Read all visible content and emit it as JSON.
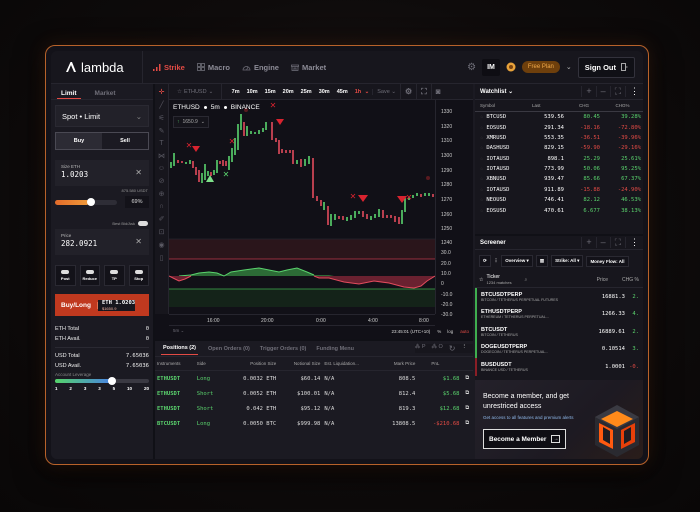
{
  "app": {
    "logo": "lambda"
  },
  "nav": [
    {
      "label": "Strike",
      "icon": "bar-chart-icon",
      "active": true
    },
    {
      "label": "Macro",
      "icon": "grid-icon",
      "active": false
    },
    {
      "label": "Engine",
      "icon": "gauge-icon",
      "active": false
    },
    {
      "label": "Market",
      "icon": "store-icon",
      "active": false
    }
  ],
  "header": {
    "user_initials": "IM",
    "plan": "Free Plan",
    "sign_out": "Sign Out"
  },
  "order_panel": {
    "tabs": [
      "Limit",
      "Market"
    ],
    "order_type": "Spot • Limit",
    "buy_label": "Buy",
    "sell_label": "Sell",
    "size_label": "Size ETH",
    "size_value": "1.0203",
    "available": "875.580 USDT",
    "size_pct": "69%",
    "best_bid_ask": "Best Bid/Ask",
    "price_label": "Price",
    "price_value": "282.0921",
    "options": [
      "Post",
      "Reduce",
      "TP",
      "Stop"
    ],
    "submit_label": "Buy/Long",
    "submit_amount": "ETH 1.0203",
    "submit_sub": "$1650.9",
    "balances": [
      {
        "label": "ETH Total",
        "value": "0"
      },
      {
        "label": "ETH Avail.",
        "value": "0"
      },
      {
        "label": "USD Total",
        "value": "7.65036"
      },
      {
        "label": "USD Avail.",
        "value": "7.65036"
      }
    ],
    "leverage_label": "Account Leverage",
    "leverage_ticks": [
      "1",
      "2",
      "3",
      "3",
      "5",
      "10",
      "20"
    ]
  },
  "chart": {
    "symbol_selector": "ETHUSD",
    "timeframes": [
      "7m",
      "10m",
      "15m",
      "20m",
      "25m",
      "30m",
      "45m",
      "1h"
    ],
    "active_timeframe": "1h",
    "save_label": "Save",
    "legend_symbol": "ETHUSD",
    "legend_interval": "5m",
    "legend_exchange": "BINANCE",
    "legend_price": "1650.9",
    "y_labels": [
      "1330",
      "1320",
      "1310",
      "1300",
      "1290",
      "1280",
      "1270",
      "1260",
      "1250",
      "1240"
    ],
    "osc_labels": [
      "30.0",
      "20.0",
      "10.0",
      "0",
      "-10.0",
      "-20.0",
      "-30.0"
    ],
    "x_labels": [
      "16:00",
      "20:00",
      "0:00",
      "4:00",
      "8:00"
    ],
    "interval_footer": "5m",
    "clock": "23:45:01 (UTC+10)",
    "footer_buttons": [
      "%",
      "log",
      "auto"
    ]
  },
  "positions": {
    "tabs": [
      "Positions (2)",
      "Open Orders (0)",
      "Trigger Orders (0)",
      "Funding Menu"
    ],
    "right_buttons": [
      "P",
      "O"
    ],
    "columns": [
      "Instruments",
      "Side",
      "Position Size",
      "Notional Size",
      "Est. Liquidation...",
      "Mark Price",
      "PnL"
    ],
    "rows": [
      {
        "instrument": "ETHUSDT",
        "side": "Long",
        "size": "0.0032 ETH",
        "notional": "$60.14",
        "liq": "N/A",
        "mark": "808.5",
        "pnl": "$1.68",
        "pnl_neg": false
      },
      {
        "instrument": "ETHUSDT",
        "side": "Short",
        "size": "0.0052 ETH",
        "notional": "$100.01",
        "liq": "N/A",
        "mark": "812.4",
        "pnl": "$5.68",
        "pnl_neg": false
      },
      {
        "instrument": "ETHUSDT",
        "side": "Short",
        "size": "0.042 ETH",
        "notional": "$95.12",
        "liq": "N/A",
        "mark": "819.3",
        "pnl": "$12.68",
        "pnl_neg": false
      },
      {
        "instrument": "BTCUSDT",
        "side": "Long",
        "size": "0.0050 BTC",
        "notional": "$999.98",
        "liq": "N/A",
        "mark": "13808.5",
        "pnl": "-$210.68",
        "pnl_neg": true
      }
    ]
  },
  "watchlist": {
    "title": "Watchlist",
    "columns": [
      "Symbol",
      "Last",
      "CHG",
      "CHG%"
    ],
    "rows": [
      {
        "symbol": "BTCUSD",
        "last": "539.56",
        "chg": "80.45",
        "pct": "39.28%",
        "up": true
      },
      {
        "symbol": "EOSUSD",
        "last": "291.34",
        "chg": "-18.16",
        "pct": "-72.80%",
        "up": false
      },
      {
        "symbol": "XMRUSD",
        "last": "553.35",
        "chg": "-36.51",
        "pct": "-39.96%",
        "up": false
      },
      {
        "symbol": "DASHUSD",
        "last": "829.15",
        "chg": "-59.90",
        "pct": "-29.16%",
        "up": false
      },
      {
        "symbol": "IOTAUSD",
        "last": "898.1",
        "chg": "25.29",
        "pct": "25.61%",
        "up": true
      },
      {
        "symbol": "IOTAUSD",
        "last": "773.99",
        "chg": "50.06",
        "pct": "95.25%",
        "up": true
      },
      {
        "symbol": "XBNUSD",
        "last": "939.47",
        "chg": "85.66",
        "pct": "67.37%",
        "up": true
      },
      {
        "symbol": "IOTAUSD",
        "last": "911.89",
        "chg": "-15.88",
        "pct": "-24.90%",
        "up": false
      },
      {
        "symbol": "NEOUSD",
        "last": "746.41",
        "chg": "82.12",
        "pct": "46.53%",
        "up": true
      },
      {
        "symbol": "EOSUSD",
        "last": "470.61",
        "chg": "6.677",
        "pct": "38.13%",
        "up": true
      }
    ]
  },
  "screener": {
    "title": "Screener",
    "filters": [
      "Overview",
      "Strike: All",
      "Money Flow: All"
    ],
    "ticker_label": "Ticker",
    "matches": "1234 matches",
    "price_col": "Price",
    "chg_col": "CHG %",
    "rows": [
      {
        "ticker": "BTCUSDTPERP",
        "desc": "BITCOIN / TETHERUS PERPETUAL FUTURES",
        "price": "16881.3",
        "chg": "2.",
        "up": true
      },
      {
        "ticker": "ETHUSDTPERP",
        "desc": "ETHEREUM / TETHERUS PERPETUAL...",
        "price": "1266.33",
        "chg": "4.",
        "up": true
      },
      {
        "ticker": "BTCUSDT",
        "desc": "BITCOIN / TETHERUS",
        "price": "16889.61",
        "chg": "2.",
        "up": true
      },
      {
        "ticker": "DOGEUSDTPERP",
        "desc": "DOGECOIN / TETHERUS PERPETUAL...",
        "price": "0.10514",
        "chg": "3.",
        "up": true
      },
      {
        "ticker": "BUSDUSDT",
        "desc": "BINANCE USD / TETHERUS",
        "price": "1.0001",
        "chg": "-0.",
        "up": false
      }
    ]
  },
  "promo": {
    "heading": "Become a member, and get unrestriced access",
    "sub": "Get access to all features and premium alerts",
    "button": "Become a Member"
  },
  "colors": {
    "accent": "#e34b45",
    "up": "#5ad36d",
    "down": "#e34b45",
    "frame": "#b8622a",
    "plan": "#f0a94a"
  }
}
